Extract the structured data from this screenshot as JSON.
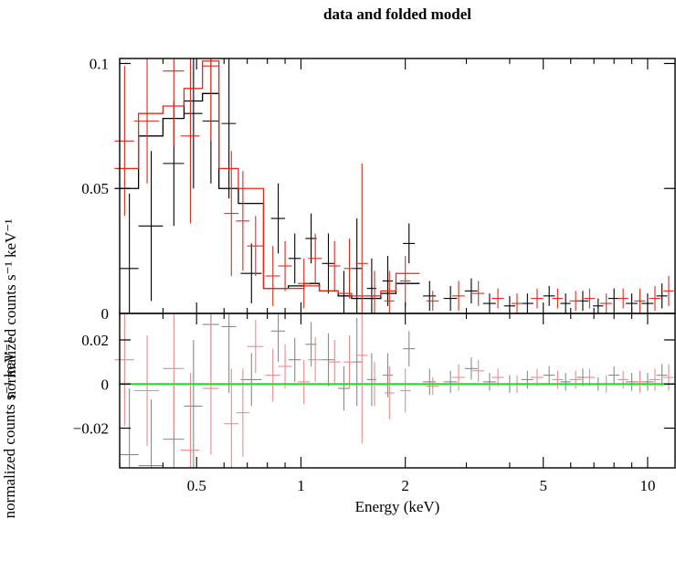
{
  "chart_data": [
    {
      "type": "line",
      "panel": "top",
      "title": "data and folded model",
      "ylabel": "normalized counts s⁻¹ keV⁻¹",
      "xscale": "log",
      "xlim": [
        0.3,
        12
      ],
      "ylim": [
        0,
        0.102
      ],
      "yticks": [
        {
          "v": 0,
          "label": "0"
        },
        {
          "v": 0.05,
          "label": "0.05"
        },
        {
          "v": 0.1,
          "label": "0.1"
        }
      ],
      "series": [
        {
          "color": "#000000",
          "data": [
            {
              "x": 0.32,
              "xe": 0.02,
              "y": 0.018,
              "ye": 0.03
            },
            {
              "x": 0.37,
              "xe": 0.03,
              "y": 0.035,
              "ye": 0.03
            },
            {
              "x": 0.43,
              "xe": 0.03,
              "y": 0.06,
              "ye": 0.025
            },
            {
              "x": 0.49,
              "xe": 0.03,
              "y": 0.08,
              "ye": 0.03
            },
            {
              "x": 0.55,
              "xe": 0.03,
              "y": 0.077,
              "ye": 0.025
            },
            {
              "x": 0.62,
              "xe": 0.03,
              "y": 0.076,
              "ye": 0.03
            },
            {
              "x": 0.72,
              "xe": 0.05,
              "y": 0.016,
              "ye": 0.012
            },
            {
              "x": 0.86,
              "xe": 0.04,
              "y": 0.038,
              "ye": 0.014
            },
            {
              "x": 0.96,
              "xe": 0.04,
              "y": 0.022,
              "ye": 0.01
            },
            {
              "x": 1.07,
              "xe": 0.04,
              "y": 0.03,
              "ye": 0.01
            },
            {
              "x": 1.2,
              "xe": 0.05,
              "y": 0.02,
              "ye": 0.012
            },
            {
              "x": 1.33,
              "xe": 0.05,
              "y": 0.007,
              "ye": 0.01
            },
            {
              "x": 1.45,
              "xe": 0.05,
              "y": 0.018,
              "ye": 0.02
            },
            {
              "x": 1.6,
              "xe": 0.05,
              "y": 0.01,
              "ye": 0.012
            },
            {
              "x": 1.78,
              "xe": 0.06,
              "y": 0.013,
              "ye": 0.01
            },
            {
              "x": 2.05,
              "xe": 0.08,
              "y": 0.028,
              "ye": 0.008
            },
            {
              "x": 2.35,
              "xe": 0.1,
              "y": 0.007,
              "ye": 0.006
            },
            {
              "x": 2.7,
              "xe": 0.12,
              "y": 0.006,
              "ye": 0.005
            },
            {
              "x": 3.1,
              "xe": 0.13,
              "y": 0.009,
              "ye": 0.005
            },
            {
              "x": 3.5,
              "xe": 0.15,
              "y": 0.004,
              "ye": 0.004
            },
            {
              "x": 4.0,
              "xe": 0.15,
              "y": 0.003,
              "ye": 0.004
            },
            {
              "x": 4.5,
              "xe": 0.18,
              "y": 0.004,
              "ye": 0.004
            },
            {
              "x": 5.2,
              "xe": 0.2,
              "y": 0.007,
              "ye": 0.004
            },
            {
              "x": 5.8,
              "xe": 0.2,
              "y": 0.004,
              "ye": 0.004
            },
            {
              "x": 6.5,
              "xe": 0.25,
              "y": 0.005,
              "ye": 0.004
            },
            {
              "x": 7.2,
              "xe": 0.25,
              "y": 0.003,
              "ye": 0.003
            },
            {
              "x": 8.0,
              "xe": 0.3,
              "y": 0.006,
              "ye": 0.004
            },
            {
              "x": 9.0,
              "xe": 0.35,
              "y": 0.004,
              "ye": 0.004
            },
            {
              "x": 10.0,
              "xe": 0.4,
              "y": 0.004,
              "ye": 0.004
            },
            {
              "x": 11.0,
              "xe": 0.4,
              "y": 0.007,
              "ye": 0.005
            }
          ],
          "model_edges": [
            0.29,
            0.34,
            0.4,
            0.46,
            0.52,
            0.58,
            0.66,
            0.78,
            0.92,
            1.02,
            1.13,
            1.28,
            1.4,
            1.52,
            1.7,
            1.88,
            2.2
          ],
          "model_values": [
            0.05,
            0.071,
            0.078,
            0.085,
            0.088,
            0.05,
            0.044,
            0.01,
            0.011,
            0.012,
            0.009,
            0.007,
            0.006,
            0.006,
            0.008,
            0.012
          ]
        },
        {
          "color": "#e8271b",
          "data": [
            {
              "x": 0.31,
              "xe": 0.02,
              "y": 0.069,
              "ye": 0.03
            },
            {
              "x": 0.36,
              "xe": 0.03,
              "y": 0.077,
              "ye": 0.025
            },
            {
              "x": 0.43,
              "xe": 0.03,
              "y": 0.097,
              "ye": 0.03
            },
            {
              "x": 0.48,
              "xe": 0.03,
              "y": 0.071,
              "ye": 0.035
            },
            {
              "x": 0.55,
              "xe": 0.03,
              "y": 0.099,
              "ye": 0.03
            },
            {
              "x": 0.63,
              "xe": 0.03,
              "y": 0.04,
              "ye": 0.025
            },
            {
              "x": 0.68,
              "xe": 0.03,
              "y": 0.037,
              "ye": 0.02
            },
            {
              "x": 0.74,
              "xe": 0.04,
              "y": 0.027,
              "ye": 0.012
            },
            {
              "x": 0.83,
              "xe": 0.04,
              "y": 0.015,
              "ye": 0.012
            },
            {
              "x": 0.9,
              "xe": 0.04,
              "y": 0.019,
              "ye": 0.01
            },
            {
              "x": 1.02,
              "xe": 0.04,
              "y": 0.012,
              "ye": 0.01
            },
            {
              "x": 1.1,
              "xe": 0.05,
              "y": 0.022,
              "ye": 0.01
            },
            {
              "x": 1.25,
              "xe": 0.05,
              "y": 0.019,
              "ye": 0.01
            },
            {
              "x": 1.38,
              "xe": 0.05,
              "y": 0.018,
              "ye": 0.012
            },
            {
              "x": 1.5,
              "xe": 0.06,
              "y": 0.02,
              "ye": 0.04
            },
            {
              "x": 1.63,
              "xe": 0.06,
              "y": 0.007,
              "ye": 0.01
            },
            {
              "x": 1.8,
              "xe": 0.06,
              "y": 0.005,
              "ye": 0.012
            },
            {
              "x": 2.0,
              "xe": 0.07,
              "y": 0.013,
              "ye": 0.01
            },
            {
              "x": 2.4,
              "xe": 0.1,
              "y": 0.005,
              "ye": 0.004
            },
            {
              "x": 2.85,
              "xe": 0.12,
              "y": 0.007,
              "ye": 0.006
            },
            {
              "x": 3.25,
              "xe": 0.13,
              "y": 0.008,
              "ye": 0.005
            },
            {
              "x": 3.7,
              "xe": 0.15,
              "y": 0.006,
              "ye": 0.004
            },
            {
              "x": 4.2,
              "xe": 0.15,
              "y": 0.004,
              "ye": 0.004
            },
            {
              "x": 4.8,
              "xe": 0.2,
              "y": 0.006,
              "ye": 0.004
            },
            {
              "x": 5.5,
              "xe": 0.2,
              "y": 0.006,
              "ye": 0.004
            },
            {
              "x": 6.2,
              "xe": 0.25,
              "y": 0.005,
              "ye": 0.004
            },
            {
              "x": 6.8,
              "xe": 0.25,
              "y": 0.006,
              "ye": 0.004
            },
            {
              "x": 7.6,
              "xe": 0.3,
              "y": 0.004,
              "ye": 0.004
            },
            {
              "x": 8.5,
              "xe": 0.3,
              "y": 0.006,
              "ye": 0.004
            },
            {
              "x": 9.5,
              "xe": 0.35,
              "y": 0.005,
              "ye": 0.005
            },
            {
              "x": 10.5,
              "xe": 0.4,
              "y": 0.006,
              "ye": 0.005
            },
            {
              "x": 11.5,
              "xe": 0.4,
              "y": 0.009,
              "ye": 0.006
            }
          ],
          "model_edges": [
            0.29,
            0.34,
            0.4,
            0.46,
            0.52,
            0.58,
            0.66,
            0.78,
            0.92,
            1.02,
            1.13,
            1.28,
            1.4,
            1.52,
            1.7,
            1.88,
            2.2
          ],
          "model_values": [
            0.058,
            0.08,
            0.083,
            0.09,
            0.101,
            0.058,
            0.05,
            0.01,
            0.01,
            0.011,
            0.009,
            0.008,
            0.007,
            0.007,
            0.009,
            0.016
          ]
        }
      ]
    },
    {
      "type": "scatter",
      "panel": "bottom",
      "xlabel": "Energy (keV)",
      "ylabel": "normalized counts s⁻¹ keV⁻¹",
      "xscale": "log",
      "xlim": [
        0.3,
        12
      ],
      "ylim": [
        -0.038,
        0.032
      ],
      "xticks": [
        {
          "v": 0.5,
          "label": "0.5"
        },
        {
          "v": 1,
          "label": "1"
        },
        {
          "v": 2,
          "label": "2"
        },
        {
          "v": 5,
          "label": "5"
        },
        {
          "v": 10,
          "label": "10"
        }
      ],
      "yticks": [
        {
          "v": 0.02,
          "label": "0.02"
        },
        {
          "v": 0,
          "label": "0"
        },
        {
          "v": -0.02,
          "label": "−0.02"
        }
      ],
      "zero_line_color": "#22dd22",
      "series": [
        {
          "color": "#8a8a8a",
          "data": [
            {
              "x": 0.32,
              "xe": 0.02,
              "y": -0.032,
              "ye": 0.03
            },
            {
              "x": 0.37,
              "xe": 0.03,
              "y": -0.037,
              "ye": 0.03
            },
            {
              "x": 0.43,
              "xe": 0.03,
              "y": -0.025,
              "ye": 0.025
            },
            {
              "x": 0.49,
              "xe": 0.03,
              "y": -0.01,
              "ye": 0.03
            },
            {
              "x": 0.55,
              "xe": 0.03,
              "y": 0.027,
              "ye": 0.025
            },
            {
              "x": 0.62,
              "xe": 0.03,
              "y": 0.026,
              "ye": 0.03
            },
            {
              "x": 0.72,
              "xe": 0.05,
              "y": 0.002,
              "ye": 0.012
            },
            {
              "x": 0.86,
              "xe": 0.04,
              "y": 0.024,
              "ye": 0.014
            },
            {
              "x": 0.96,
              "xe": 0.04,
              "y": 0.011,
              "ye": 0.01
            },
            {
              "x": 1.07,
              "xe": 0.04,
              "y": 0.018,
              "ye": 0.01
            },
            {
              "x": 1.2,
              "xe": 0.05,
              "y": 0.011,
              "ye": 0.012
            },
            {
              "x": 1.33,
              "xe": 0.05,
              "y": -0.002,
              "ye": 0.01
            },
            {
              "x": 1.45,
              "xe": 0.05,
              "y": 0.01,
              "ye": 0.02
            },
            {
              "x": 1.6,
              "xe": 0.05,
              "y": 0.002,
              "ye": 0.012
            },
            {
              "x": 1.78,
              "xe": 0.06,
              "y": 0.004,
              "ye": 0.01
            },
            {
              "x": 2.05,
              "xe": 0.08,
              "y": 0.016,
              "ye": 0.008
            },
            {
              "x": 2.35,
              "xe": 0.1,
              "y": 0.001,
              "ye": 0.006
            },
            {
              "x": 2.7,
              "xe": 0.12,
              "y": 0.001,
              "ye": 0.005
            },
            {
              "x": 3.1,
              "xe": 0.13,
              "y": 0.007,
              "ye": 0.005
            },
            {
              "x": 3.5,
              "xe": 0.15,
              "y": 0.001,
              "ye": 0.004
            },
            {
              "x": 4.0,
              "xe": 0.15,
              "y": 0.0,
              "ye": 0.004
            },
            {
              "x": 4.5,
              "xe": 0.18,
              "y": 0.002,
              "ye": 0.004
            },
            {
              "x": 5.2,
              "xe": 0.2,
              "y": 0.004,
              "ye": 0.004
            },
            {
              "x": 5.8,
              "xe": 0.2,
              "y": 0.001,
              "ye": 0.004
            },
            {
              "x": 6.5,
              "xe": 0.25,
              "y": 0.003,
              "ye": 0.004
            },
            {
              "x": 7.2,
              "xe": 0.25,
              "y": 0.0,
              "ye": 0.003
            },
            {
              "x": 8.0,
              "xe": 0.3,
              "y": 0.004,
              "ye": 0.004
            },
            {
              "x": 9.0,
              "xe": 0.35,
              "y": 0.001,
              "ye": 0.004
            },
            {
              "x": 10.0,
              "xe": 0.4,
              "y": 0.001,
              "ye": 0.004
            },
            {
              "x": 11.0,
              "xe": 0.4,
              "y": 0.004,
              "ye": 0.005
            }
          ]
        },
        {
          "color": "#f08a8a",
          "data": [
            {
              "x": 0.31,
              "xe": 0.02,
              "y": 0.011,
              "ye": 0.03
            },
            {
              "x": 0.36,
              "xe": 0.03,
              "y": -0.003,
              "ye": 0.025
            },
            {
              "x": 0.43,
              "xe": 0.03,
              "y": 0.007,
              "ye": 0.03
            },
            {
              "x": 0.48,
              "xe": 0.03,
              "y": -0.03,
              "ye": 0.035
            },
            {
              "x": 0.55,
              "xe": 0.03,
              "y": -0.002,
              "ye": 0.03
            },
            {
              "x": 0.63,
              "xe": 0.03,
              "y": -0.018,
              "ye": 0.025
            },
            {
              "x": 0.68,
              "xe": 0.03,
              "y": -0.013,
              "ye": 0.02
            },
            {
              "x": 0.74,
              "xe": 0.04,
              "y": 0.017,
              "ye": 0.012
            },
            {
              "x": 0.83,
              "xe": 0.04,
              "y": 0.004,
              "ye": 0.012
            },
            {
              "x": 0.9,
              "xe": 0.04,
              "y": 0.008,
              "ye": 0.01
            },
            {
              "x": 1.02,
              "xe": 0.04,
              "y": 0.001,
              "ye": 0.01
            },
            {
              "x": 1.1,
              "xe": 0.05,
              "y": 0.011,
              "ye": 0.01
            },
            {
              "x": 1.25,
              "xe": 0.05,
              "y": 0.01,
              "ye": 0.01
            },
            {
              "x": 1.38,
              "xe": 0.05,
              "y": 0.01,
              "ye": 0.012
            },
            {
              "x": 1.5,
              "xe": 0.06,
              "y": 0.013,
              "ye": 0.04
            },
            {
              "x": 1.63,
              "xe": 0.06,
              "y": 0.0,
              "ye": 0.01
            },
            {
              "x": 1.8,
              "xe": 0.06,
              "y": -0.004,
              "ye": 0.012
            },
            {
              "x": 2.0,
              "xe": 0.07,
              "y": -0.003,
              "ye": 0.01
            },
            {
              "x": 2.4,
              "xe": 0.1,
              "y": -0.001,
              "ye": 0.004
            },
            {
              "x": 2.85,
              "xe": 0.12,
              "y": 0.003,
              "ye": 0.006
            },
            {
              "x": 3.25,
              "xe": 0.13,
              "y": 0.006,
              "ye": 0.005
            },
            {
              "x": 3.7,
              "xe": 0.15,
              "y": 0.003,
              "ye": 0.004
            },
            {
              "x": 4.2,
              "xe": 0.15,
              "y": 0.0,
              "ye": 0.004
            },
            {
              "x": 4.8,
              "xe": 0.2,
              "y": 0.003,
              "ye": 0.004
            },
            {
              "x": 5.5,
              "xe": 0.2,
              "y": 0.002,
              "ye": 0.004
            },
            {
              "x": 6.2,
              "xe": 0.25,
              "y": 0.002,
              "ye": 0.004
            },
            {
              "x": 6.8,
              "xe": 0.25,
              "y": 0.003,
              "ye": 0.004
            },
            {
              "x": 7.6,
              "xe": 0.3,
              "y": 0.0,
              "ye": 0.004
            },
            {
              "x": 8.5,
              "xe": 0.3,
              "y": 0.002,
              "ye": 0.004
            },
            {
              "x": 9.5,
              "xe": 0.35,
              "y": 0.001,
              "ye": 0.005
            },
            {
              "x": 10.5,
              "xe": 0.4,
              "y": 0.002,
              "ye": 0.005
            },
            {
              "x": 11.5,
              "xe": 0.4,
              "y": 0.003,
              "ye": 0.006
            }
          ]
        }
      ]
    }
  ]
}
